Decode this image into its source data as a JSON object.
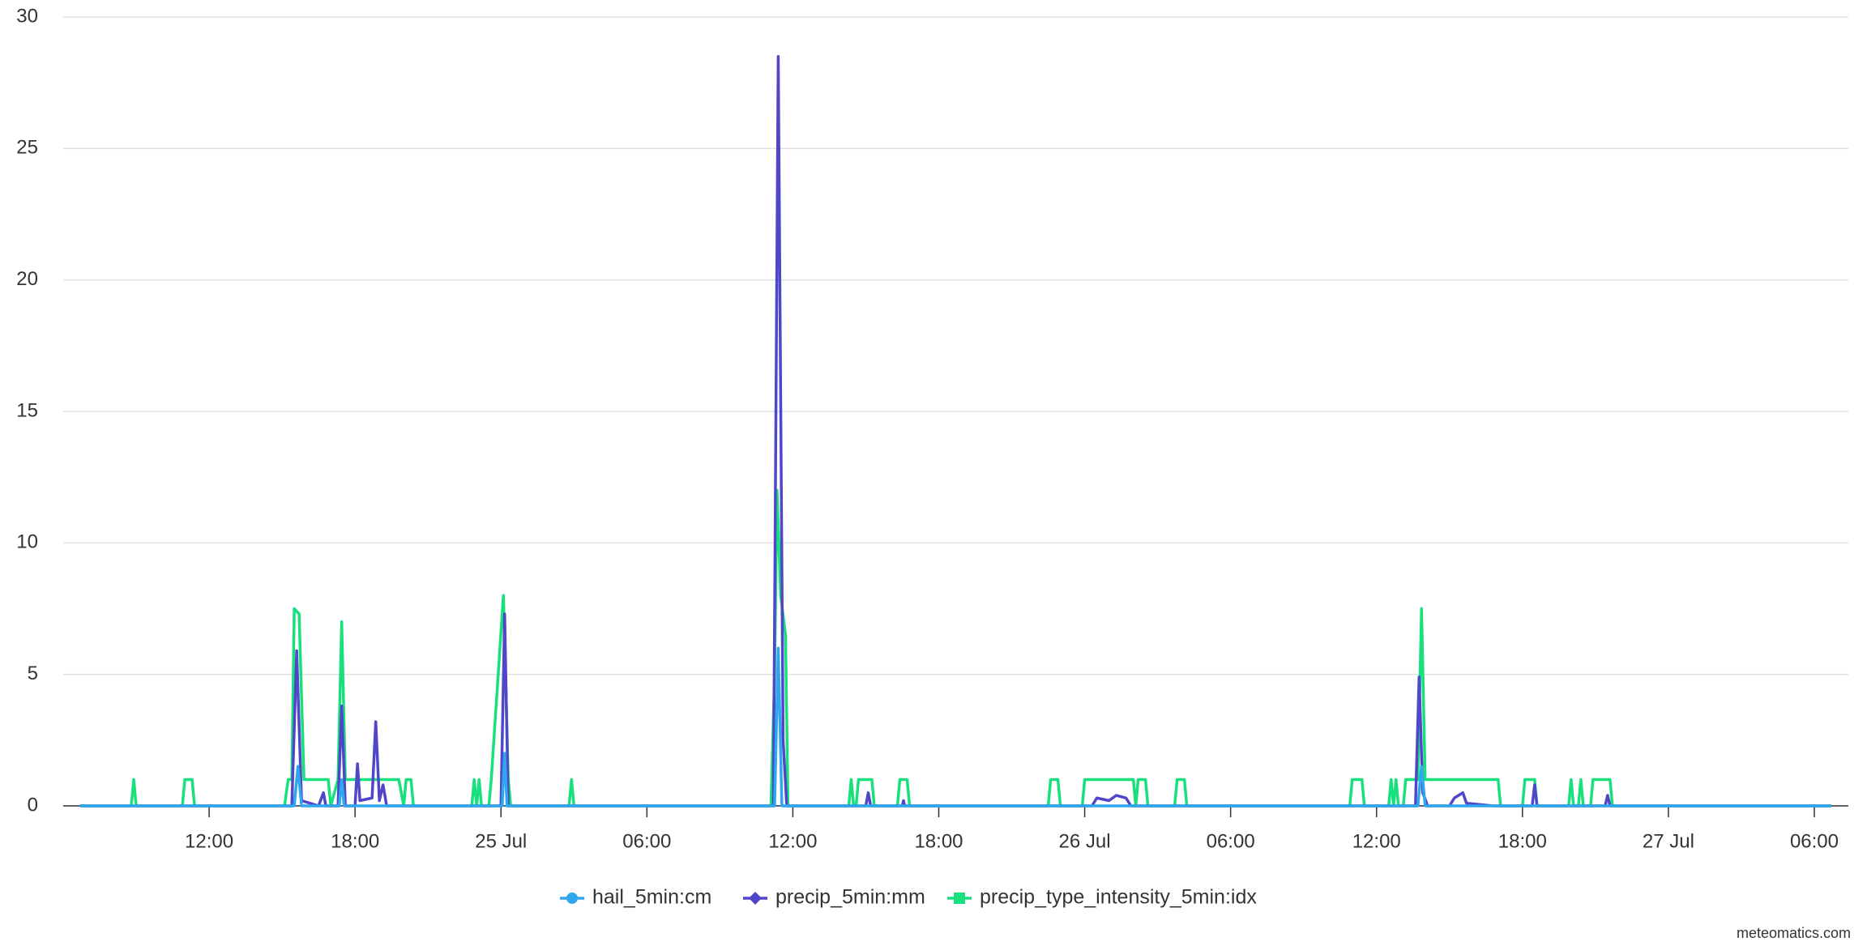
{
  "chart_data": {
    "type": "line",
    "credit": "meteomatics.com",
    "xlim": [
      6,
      79.4
    ],
    "ylim": [
      0,
      30
    ],
    "yticks": [
      0,
      5,
      10,
      15,
      20,
      25,
      30
    ],
    "xticks": [
      {
        "value": 12,
        "label": "12:00"
      },
      {
        "value": 18,
        "label": "18:00"
      },
      {
        "value": 24,
        "label": "25 Jul"
      },
      {
        "value": 30,
        "label": "06:00"
      },
      {
        "value": 36,
        "label": "12:00"
      },
      {
        "value": 42,
        "label": "18:00"
      },
      {
        "value": 48,
        "label": "26 Jul"
      },
      {
        "value": 54,
        "label": "06:00"
      },
      {
        "value": 60,
        "label": "12:00"
      },
      {
        "value": 66,
        "label": "18:00"
      },
      {
        "value": 72,
        "label": "27 Jul"
      },
      {
        "value": 78,
        "label": "06:00"
      }
    ],
    "grid": true,
    "series": [
      {
        "name": "hail_5min:cm",
        "color": "#2fa7ee",
        "marker": "circle",
        "x": [
          6.7,
          15.5,
          15.65,
          15.8,
          17.35,
          17.45,
          17.55,
          24.05,
          24.15,
          24.25,
          35.25,
          35.4,
          35.55,
          61.7,
          61.85,
          62.0,
          78.7
        ],
        "values": [
          0,
          0,
          1.5,
          0,
          0,
          1,
          0,
          0,
          2,
          0,
          0,
          6,
          0,
          0,
          1.5,
          0,
          0
        ]
      },
      {
        "name": "precip_5min:mm",
        "color": "#5046c9",
        "marker": "diamond",
        "x": [
          6.7,
          15.4,
          15.6,
          15.8,
          16.5,
          16.7,
          16.8,
          17.3,
          17.45,
          17.6,
          18.0,
          18.1,
          18.2,
          18.7,
          18.85,
          19.0,
          19.15,
          19.3,
          24.0,
          24.15,
          24.3,
          35.2,
          35.4,
          35.6,
          35.75,
          39.0,
          39.1,
          39.2,
          40.5,
          40.55,
          40.6,
          48.3,
          48.5,
          49.0,
          49.3,
          49.7,
          49.9,
          61.6,
          61.75,
          61.9,
          62.1,
          63.0,
          63.2,
          63.55,
          63.7,
          64.8,
          66.4,
          66.5,
          66.6,
          69.4,
          69.5,
          69.6,
          78.7
        ],
        "values": [
          0,
          0,
          5.9,
          0.2,
          0,
          0.5,
          0,
          0,
          3.8,
          0,
          0,
          1.6,
          0.2,
          0.3,
          3.2,
          0.2,
          0.8,
          0,
          0,
          7.3,
          0,
          0,
          28.5,
          2.5,
          0,
          0,
          0.5,
          0,
          0,
          0.2,
          0,
          0,
          0.3,
          0.2,
          0.4,
          0.3,
          0,
          0,
          4.9,
          0.5,
          0,
          0,
          0.3,
          0.5,
          0.1,
          0,
          0,
          0.8,
          0,
          0,
          0.4,
          0,
          0
        ]
      },
      {
        "name": "precip_type_intensity_5min:idx",
        "color": "#17e07c",
        "marker": "square",
        "x": [
          6.7,
          8.8,
          8.9,
          9.0,
          10.9,
          11.0,
          11.3,
          11.4,
          15.1,
          15.25,
          15.4,
          15.5,
          15.7,
          15.9,
          16.9,
          17.0,
          17.3,
          17.45,
          17.6,
          19.8,
          20.0,
          20.1,
          20.3,
          20.4,
          22.8,
          22.9,
          23.0,
          23.1,
          23.2,
          23.5,
          23.6,
          24.1,
          24.3,
          24.4,
          26.8,
          26.9,
          27.0,
          35.1,
          35.25,
          35.35,
          35.5,
          35.7,
          35.8,
          38.3,
          38.4,
          38.5,
          38.6,
          38.7,
          39.25,
          39.35,
          40.3,
          40.4,
          40.7,
          40.8,
          46.5,
          46.6,
          46.9,
          47.0,
          47.9,
          48.0,
          50.0,
          50.1,
          50.2,
          50.5,
          50.6,
          51.7,
          51.8,
          52.1,
          52.2,
          58.9,
          59.0,
          59.4,
          59.5,
          60.5,
          60.6,
          60.7,
          60.8,
          60.9,
          61.1,
          61.2,
          61.7,
          61.85,
          62.0,
          65.0,
          65.1,
          66.0,
          66.1,
          66.5,
          66.6,
          67.9,
          68.0,
          68.1,
          68.3,
          68.4,
          68.5,
          68.8,
          68.9,
          69.6,
          69.7,
          78.7
        ],
        "values": [
          0,
          0,
          1,
          0,
          0,
          1,
          1,
          0,
          0,
          1,
          1,
          7.5,
          7.3,
          1,
          1,
          0,
          1,
          7,
          1,
          1,
          0,
          1,
          1,
          0,
          0,
          1,
          0,
          1,
          0,
          0,
          1,
          8,
          1,
          0,
          0,
          1,
          0,
          0,
          5,
          12,
          8,
          6.5,
          0,
          0,
          1,
          0,
          0,
          1,
          1,
          0,
          0,
          1,
          1,
          0,
          0,
          1,
          1,
          0,
          0,
          1,
          1,
          0,
          1,
          1,
          0,
          0,
          1,
          1,
          0,
          0,
          1,
          1,
          0,
          0,
          1,
          0,
          1,
          0,
          0,
          1,
          1,
          7.5,
          1,
          1,
          0,
          0,
          1,
          1,
          0,
          0,
          1,
          0,
          0,
          1,
          0,
          0,
          1,
          1,
          0,
          0
        ]
      }
    ]
  }
}
